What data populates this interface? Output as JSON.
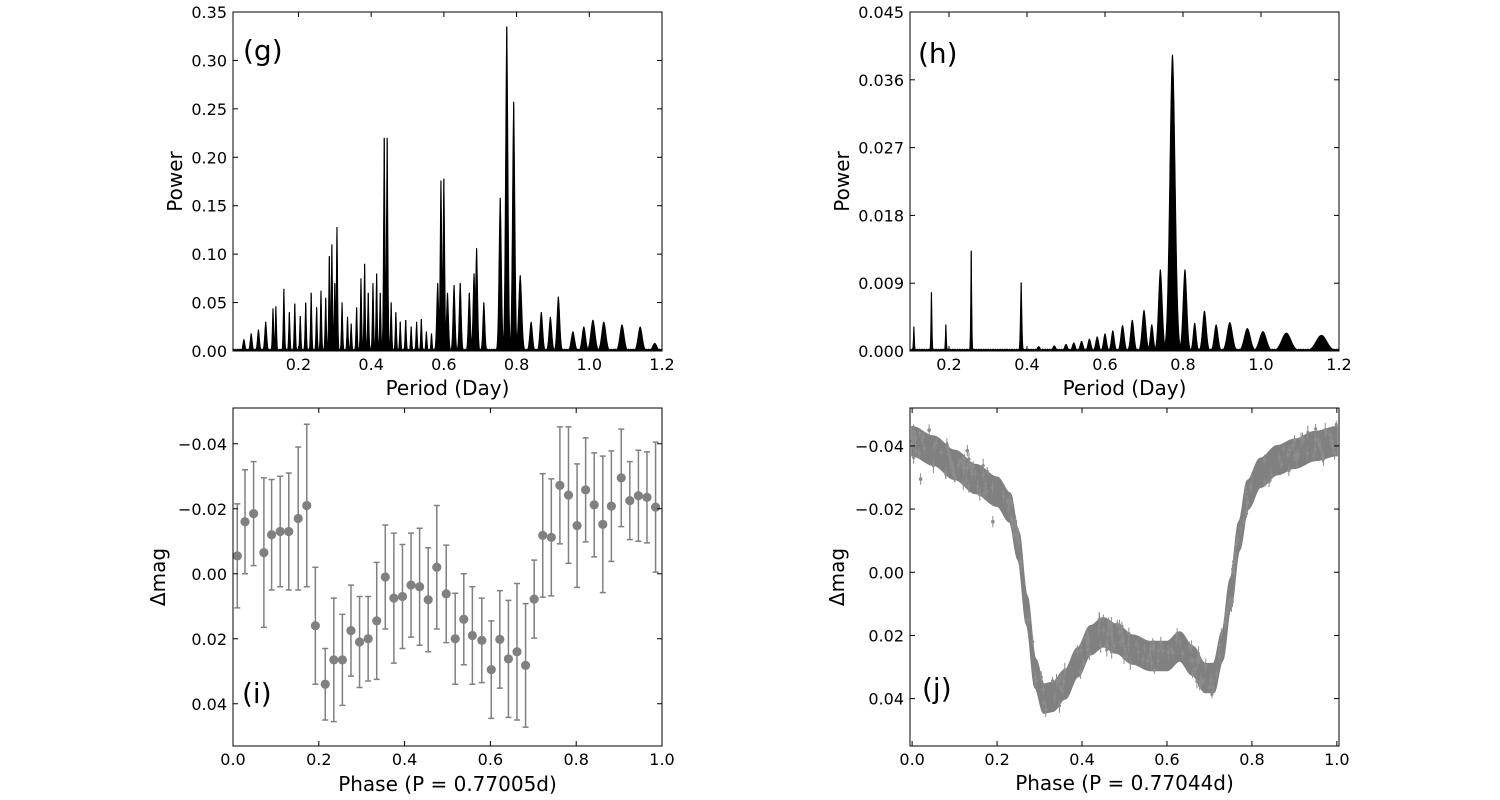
{
  "colors": {
    "periodogram": "#000000",
    "phase_points": "#808080",
    "axes": "#000000"
  },
  "chart_data": [
    {
      "id": "g",
      "type": "line",
      "tag": "(g)",
      "xlabel": "Period (Day)",
      "ylabel": "Power",
      "xlim": [
        0.02,
        1.2
      ],
      "ylim": [
        0,
        0.35
      ],
      "xticks": [
        0.2,
        0.4,
        0.6,
        0.8,
        1.0,
        1.2
      ],
      "xtick_labels": [
        "0.2",
        "0.4",
        "0.6",
        "0.8",
        "1.0",
        "1.2"
      ],
      "yticks": [
        0,
        0.05,
        0.1,
        0.15,
        0.2,
        0.25,
        0.3,
        0.35
      ],
      "ytick_labels": [
        "0.00",
        "0.05",
        "0.10",
        "0.15",
        "0.20",
        "0.25",
        "0.30",
        "0.35"
      ],
      "peaks": [
        {
          "p": 0.05,
          "h": 0.012,
          "w": 0.003
        },
        {
          "p": 0.07,
          "h": 0.018,
          "w": 0.003
        },
        {
          "p": 0.09,
          "h": 0.022,
          "w": 0.003
        },
        {
          "p": 0.11,
          "h": 0.03,
          "w": 0.003
        },
        {
          "p": 0.13,
          "h": 0.044,
          "w": 0.002
        },
        {
          "p": 0.138,
          "h": 0.046,
          "w": 0.002
        },
        {
          "p": 0.16,
          "h": 0.064,
          "w": 0.002
        },
        {
          "p": 0.175,
          "h": 0.04,
          "w": 0.002
        },
        {
          "p": 0.19,
          "h": 0.049,
          "w": 0.002
        },
        {
          "p": 0.205,
          "h": 0.036,
          "w": 0.002
        },
        {
          "p": 0.22,
          "h": 0.05,
          "w": 0.002
        },
        {
          "p": 0.235,
          "h": 0.06,
          "w": 0.002
        },
        {
          "p": 0.25,
          "h": 0.045,
          "w": 0.002
        },
        {
          "p": 0.262,
          "h": 0.062,
          "w": 0.002
        },
        {
          "p": 0.275,
          "h": 0.055,
          "w": 0.002
        },
        {
          "p": 0.285,
          "h": 0.098,
          "w": 0.002
        },
        {
          "p": 0.292,
          "h": 0.11,
          "w": 0.002
        },
        {
          "p": 0.3,
          "h": 0.07,
          "w": 0.002
        },
        {
          "p": 0.306,
          "h": 0.128,
          "w": 0.002
        },
        {
          "p": 0.32,
          "h": 0.05,
          "w": 0.002
        },
        {
          "p": 0.335,
          "h": 0.035,
          "w": 0.002
        },
        {
          "p": 0.345,
          "h": 0.028,
          "w": 0.002
        },
        {
          "p": 0.36,
          "h": 0.045,
          "w": 0.002
        },
        {
          "p": 0.372,
          "h": 0.075,
          "w": 0.002
        },
        {
          "p": 0.382,
          "h": 0.09,
          "w": 0.002
        },
        {
          "p": 0.392,
          "h": 0.06,
          "w": 0.002
        },
        {
          "p": 0.405,
          "h": 0.07,
          "w": 0.002
        },
        {
          "p": 0.415,
          "h": 0.08,
          "w": 0.002
        },
        {
          "p": 0.425,
          "h": 0.06,
          "w": 0.002
        },
        {
          "p": 0.436,
          "h": 0.22,
          "w": 0.0022
        },
        {
          "p": 0.444,
          "h": 0.22,
          "w": 0.0022
        },
        {
          "p": 0.455,
          "h": 0.05,
          "w": 0.002
        },
        {
          "p": 0.468,
          "h": 0.04,
          "w": 0.002
        },
        {
          "p": 0.48,
          "h": 0.03,
          "w": 0.002
        },
        {
          "p": 0.495,
          "h": 0.032,
          "w": 0.002
        },
        {
          "p": 0.51,
          "h": 0.025,
          "w": 0.002
        },
        {
          "p": 0.525,
          "h": 0.03,
          "w": 0.002
        },
        {
          "p": 0.538,
          "h": 0.033,
          "w": 0.002
        },
        {
          "p": 0.552,
          "h": 0.02,
          "w": 0.002
        },
        {
          "p": 0.566,
          "h": 0.018,
          "w": 0.002
        },
        {
          "p": 0.583,
          "h": 0.07,
          "w": 0.003
        },
        {
          "p": 0.592,
          "h": 0.176,
          "w": 0.0025
        },
        {
          "p": 0.6,
          "h": 0.178,
          "w": 0.0025
        },
        {
          "p": 0.61,
          "h": 0.06,
          "w": 0.003
        },
        {
          "p": 0.628,
          "h": 0.068,
          "w": 0.003
        },
        {
          "p": 0.645,
          "h": 0.07,
          "w": 0.003
        },
        {
          "p": 0.67,
          "h": 0.06,
          "w": 0.003
        },
        {
          "p": 0.683,
          "h": 0.08,
          "w": 0.003
        },
        {
          "p": 0.69,
          "h": 0.106,
          "w": 0.003
        },
        {
          "p": 0.71,
          "h": 0.05,
          "w": 0.003
        },
        {
          "p": 0.755,
          "h": 0.158,
          "w": 0.0035
        },
        {
          "p": 0.773,
          "h": 0.335,
          "w": 0.0035
        },
        {
          "p": 0.792,
          "h": 0.257,
          "w": 0.0035
        },
        {
          "p": 0.81,
          "h": 0.078,
          "w": 0.0045
        },
        {
          "p": 0.84,
          "h": 0.03,
          "w": 0.004
        },
        {
          "p": 0.868,
          "h": 0.04,
          "w": 0.004
        },
        {
          "p": 0.893,
          "h": 0.035,
          "w": 0.004
        },
        {
          "p": 0.915,
          "h": 0.056,
          "w": 0.004
        },
        {
          "p": 0.955,
          "h": 0.02,
          "w": 0.005
        },
        {
          "p": 0.985,
          "h": 0.025,
          "w": 0.005
        },
        {
          "p": 1.01,
          "h": 0.032,
          "w": 0.006
        },
        {
          "p": 1.04,
          "h": 0.03,
          "w": 0.006
        },
        {
          "p": 1.09,
          "h": 0.027,
          "w": 0.006
        },
        {
          "p": 1.14,
          "h": 0.025,
          "w": 0.006
        },
        {
          "p": 1.18,
          "h": 0.008,
          "w": 0.006
        }
      ]
    },
    {
      "id": "h",
      "type": "line",
      "tag": "(h)",
      "xlabel": "Period (Day)",
      "ylabel": "Power",
      "xlim": [
        0.1,
        1.2
      ],
      "ylim": [
        0,
        0.045
      ],
      "xticks": [
        0.2,
        0.4,
        0.6,
        0.8,
        1.0,
        1.2
      ],
      "xtick_labels": [
        "0.2",
        "0.4",
        "0.6",
        "0.8",
        "1.0",
        "1.2"
      ],
      "yticks": [
        0,
        0.009,
        0.018,
        0.027,
        0.036,
        0.045
      ],
      "ytick_labels": [
        "0.000",
        "0.009",
        "0.018",
        "0.027",
        "0.036",
        "0.045"
      ],
      "peaks": [
        {
          "p": 0.11,
          "h": 0.0032,
          "w": 0.0015
        },
        {
          "p": 0.155,
          "h": 0.0078,
          "w": 0.0015
        },
        {
          "p": 0.192,
          "h": 0.0035,
          "w": 0.0015
        },
        {
          "p": 0.257,
          "h": 0.0133,
          "w": 0.0015
        },
        {
          "p": 0.385,
          "h": 0.0091,
          "w": 0.002
        },
        {
          "p": 0.43,
          "h": 0.0006,
          "w": 0.004
        },
        {
          "p": 0.47,
          "h": 0.0007,
          "w": 0.004
        },
        {
          "p": 0.5,
          "h": 0.0009,
          "w": 0.004
        },
        {
          "p": 0.52,
          "h": 0.0011,
          "w": 0.004
        },
        {
          "p": 0.54,
          "h": 0.0013,
          "w": 0.004
        },
        {
          "p": 0.56,
          "h": 0.0016,
          "w": 0.004
        },
        {
          "p": 0.58,
          "h": 0.0019,
          "w": 0.004
        },
        {
          "p": 0.6,
          "h": 0.0023,
          "w": 0.004
        },
        {
          "p": 0.62,
          "h": 0.0027,
          "w": 0.004
        },
        {
          "p": 0.645,
          "h": 0.0034,
          "w": 0.0045
        },
        {
          "p": 0.67,
          "h": 0.0041,
          "w": 0.0045
        },
        {
          "p": 0.7,
          "h": 0.0054,
          "w": 0.005
        },
        {
          "p": 0.72,
          "h": 0.0035,
          "w": 0.004
        },
        {
          "p": 0.742,
          "h": 0.0108,
          "w": 0.005
        },
        {
          "p": 0.773,
          "h": 0.0393,
          "w": 0.007
        },
        {
          "p": 0.805,
          "h": 0.0108,
          "w": 0.005
        },
        {
          "p": 0.83,
          "h": 0.0037,
          "w": 0.004
        },
        {
          "p": 0.855,
          "h": 0.0053,
          "w": 0.005
        },
        {
          "p": 0.885,
          "h": 0.0035,
          "w": 0.005
        },
        {
          "p": 0.92,
          "h": 0.0038,
          "w": 0.007
        },
        {
          "p": 0.965,
          "h": 0.003,
          "w": 0.008
        },
        {
          "p": 1.005,
          "h": 0.0026,
          "w": 0.009
        },
        {
          "p": 1.065,
          "h": 0.0024,
          "w": 0.012
        },
        {
          "p": 1.155,
          "h": 0.0021,
          "w": 0.014
        }
      ]
    },
    {
      "id": "i",
      "type": "scatter",
      "tag": "(i)",
      "xlabel": "Phase (P = 0.77005d)",
      "ylabel": "Δmag",
      "xlim": [
        0,
        1.0
      ],
      "ylim": [
        0.053,
        -0.051
      ],
      "inverted_y": true,
      "xticks": [
        0,
        0.2,
        0.4,
        0.6,
        0.8,
        1.0
      ],
      "xtick_labels": [
        "0.0",
        "0.2",
        "0.4",
        "0.6",
        "0.8",
        "1.0"
      ],
      "yticks": [
        -0.04,
        -0.02,
        0.0,
        0.02,
        0.04
      ],
      "ytick_labels": [
        "−0.04",
        "−0.02",
        "0.00",
        "0.02",
        "0.04"
      ],
      "points": [
        {
          "x": 0.01,
          "y": -0.0055,
          "err": 0.016
        },
        {
          "x": 0.028,
          "y": -0.016,
          "err": 0.016
        },
        {
          "x": 0.048,
          "y": -0.0185,
          "err": 0.016
        },
        {
          "x": 0.072,
          "y": -0.0065,
          "err": 0.023
        },
        {
          "x": 0.09,
          "y": -0.012,
          "err": 0.017
        },
        {
          "x": 0.11,
          "y": -0.013,
          "err": 0.017
        },
        {
          "x": 0.13,
          "y": -0.013,
          "err": 0.018
        },
        {
          "x": 0.152,
          "y": -0.017,
          "err": 0.022
        },
        {
          "x": 0.172,
          "y": -0.021,
          "err": 0.025
        },
        {
          "x": 0.192,
          "y": 0.016,
          "err": 0.018
        },
        {
          "x": 0.215,
          "y": 0.034,
          "err": 0.011
        },
        {
          "x": 0.235,
          "y": 0.0265,
          "err": 0.019
        },
        {
          "x": 0.255,
          "y": 0.0265,
          "err": 0.014
        },
        {
          "x": 0.275,
          "y": 0.0175,
          "err": 0.014
        },
        {
          "x": 0.295,
          "y": 0.021,
          "err": 0.014
        },
        {
          "x": 0.315,
          "y": 0.02,
          "err": 0.013
        },
        {
          "x": 0.335,
          "y": 0.0145,
          "err": 0.018
        },
        {
          "x": 0.355,
          "y": 0.001,
          "err": 0.016
        },
        {
          "x": 0.375,
          "y": 0.0075,
          "err": 0.02
        },
        {
          "x": 0.395,
          "y": 0.007,
          "err": 0.016
        },
        {
          "x": 0.415,
          "y": 0.0035,
          "err": 0.016
        },
        {
          "x": 0.435,
          "y": 0.004,
          "err": 0.018
        },
        {
          "x": 0.455,
          "y": 0.008,
          "err": 0.016
        },
        {
          "x": 0.475,
          "y": -0.002,
          "err": 0.019
        },
        {
          "x": 0.497,
          "y": 0.0062,
          "err": 0.015
        },
        {
          "x": 0.518,
          "y": 0.02,
          "err": 0.014
        },
        {
          "x": 0.538,
          "y": 0.014,
          "err": 0.014
        },
        {
          "x": 0.558,
          "y": 0.019,
          "err": 0.015
        },
        {
          "x": 0.58,
          "y": 0.0205,
          "err": 0.013
        },
        {
          "x": 0.602,
          "y": 0.0295,
          "err": 0.015
        },
        {
          "x": 0.622,
          "y": 0.0202,
          "err": 0.015
        },
        {
          "x": 0.642,
          "y": 0.0262,
          "err": 0.018
        },
        {
          "x": 0.662,
          "y": 0.024,
          "err": 0.021
        },
        {
          "x": 0.682,
          "y": 0.0282,
          "err": 0.019
        },
        {
          "x": 0.702,
          "y": 0.0078,
          "err": 0.012
        },
        {
          "x": 0.722,
          "y": -0.0118,
          "err": 0.019
        },
        {
          "x": 0.742,
          "y": -0.0112,
          "err": 0.018
        },
        {
          "x": 0.762,
          "y": -0.0272,
          "err": 0.018
        },
        {
          "x": 0.782,
          "y": -0.0242,
          "err": 0.021
        },
        {
          "x": 0.802,
          "y": -0.0148,
          "err": 0.019
        },
        {
          "x": 0.822,
          "y": -0.0258,
          "err": 0.016
        },
        {
          "x": 0.842,
          "y": -0.0212,
          "err": 0.016
        },
        {
          "x": 0.862,
          "y": -0.0152,
          "err": 0.021
        },
        {
          "x": 0.882,
          "y": -0.0208,
          "err": 0.017
        },
        {
          "x": 0.905,
          "y": -0.0295,
          "err": 0.015
        },
        {
          "x": 0.925,
          "y": -0.0225,
          "err": 0.012
        },
        {
          "x": 0.945,
          "y": -0.024,
          "err": 0.014
        },
        {
          "x": 0.965,
          "y": -0.0235,
          "err": 0.014
        },
        {
          "x": 0.985,
          "y": -0.0205,
          "err": 0.02
        }
      ]
    },
    {
      "id": "j",
      "type": "scatter",
      "tag": "(j)",
      "xlabel": "Phase (P = 0.77044d)",
      "ylabel": "Δmag",
      "xlim": [
        -0.005,
        1.005
      ],
      "ylim": [
        0.055,
        -0.052
      ],
      "inverted_y": true,
      "xticks": [
        0,
        0.2,
        0.4,
        0.6,
        0.8,
        1.0
      ],
      "xtick_labels": [
        "0.0",
        "0.2",
        "0.4",
        "0.6",
        "0.8",
        "1.0"
      ],
      "yticks": [
        -0.04,
        -0.02,
        0.0,
        0.02,
        0.04
      ],
      "ytick_labels": [
        "−0.04",
        "−0.02",
        "0.00",
        "0.02",
        "0.04"
      ],
      "light_curve": [
        {
          "x": 0.0,
          "y": -0.0415
        },
        {
          "x": 0.05,
          "y": -0.0385
        },
        {
          "x": 0.1,
          "y": -0.034
        },
        {
          "x": 0.15,
          "y": -0.0295
        },
        {
          "x": 0.2,
          "y": -0.0255
        },
        {
          "x": 0.23,
          "y": -0.0205
        },
        {
          "x": 0.25,
          "y": -0.0085
        },
        {
          "x": 0.27,
          "y": 0.012
        },
        {
          "x": 0.29,
          "y": 0.032
        },
        {
          "x": 0.31,
          "y": 0.04
        },
        {
          "x": 0.33,
          "y": 0.0395
        },
        {
          "x": 0.36,
          "y": 0.0355
        },
        {
          "x": 0.39,
          "y": 0.0285
        },
        {
          "x": 0.42,
          "y": 0.0215
        },
        {
          "x": 0.45,
          "y": 0.019
        },
        {
          "x": 0.48,
          "y": 0.021
        },
        {
          "x": 0.52,
          "y": 0.0245
        },
        {
          "x": 0.56,
          "y": 0.0265
        },
        {
          "x": 0.6,
          "y": 0.0265
        },
        {
          "x": 0.63,
          "y": 0.0235
        },
        {
          "x": 0.66,
          "y": 0.028
        },
        {
          "x": 0.69,
          "y": 0.0335
        },
        {
          "x": 0.71,
          "y": 0.0335
        },
        {
          "x": 0.73,
          "y": 0.0235
        },
        {
          "x": 0.75,
          "y": 0.0065
        },
        {
          "x": 0.77,
          "y": -0.0115
        },
        {
          "x": 0.79,
          "y": -0.0245
        },
        {
          "x": 0.82,
          "y": -0.0315
        },
        {
          "x": 0.86,
          "y": -0.0355
        },
        {
          "x": 0.9,
          "y": -0.0375
        },
        {
          "x": 0.95,
          "y": -0.04
        },
        {
          "x": 1.0,
          "y": -0.0415
        }
      ],
      "band_halfwidth": 0.0045
    }
  ]
}
